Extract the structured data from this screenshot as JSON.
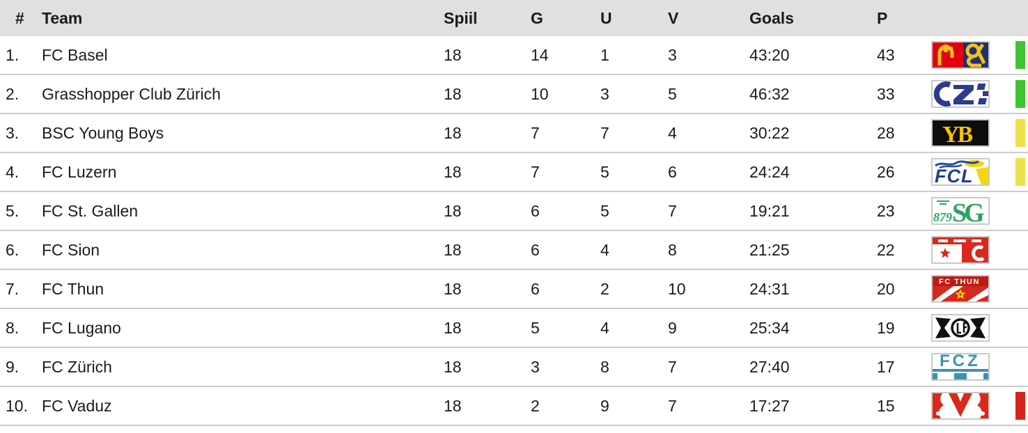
{
  "table": {
    "columns": [
      {
        "key": "rank",
        "label": "#"
      },
      {
        "key": "team",
        "label": "Team"
      },
      {
        "key": "spiil",
        "label": "Spiil"
      },
      {
        "key": "g",
        "label": "G"
      },
      {
        "key": "u",
        "label": "U"
      },
      {
        "key": "v",
        "label": "V"
      },
      {
        "key": "goals",
        "label": "Goals"
      },
      {
        "key": "p",
        "label": "P"
      }
    ],
    "rows": [
      {
        "rank": "1.",
        "team": "FC Basel",
        "spiil": "18",
        "g": "14",
        "u": "1",
        "v": "3",
        "goals": "43:20",
        "p": "43",
        "logo": "fc-basel-logo",
        "bar_color": "#3ec52f"
      },
      {
        "rank": "2.",
        "team": "Grasshopper Club Zürich",
        "spiil": "18",
        "g": "10",
        "u": "3",
        "v": "5",
        "goals": "46:32",
        "p": "33",
        "logo": "grasshopper-club-zuerich-logo",
        "bar_color": "#3ec52f"
      },
      {
        "rank": "3.",
        "team": "BSC Young Boys",
        "spiil": "18",
        "g": "7",
        "u": "7",
        "v": "4",
        "goals": "30:22",
        "p": "28",
        "logo": "bsc-young-boys-logo",
        "bar_color": "#efe14c"
      },
      {
        "rank": "4.",
        "team": "FC Luzern",
        "spiil": "18",
        "g": "7",
        "u": "5",
        "v": "6",
        "goals": "24:24",
        "p": "26",
        "logo": "fc-luzern-logo",
        "bar_color": "#efe14c"
      },
      {
        "rank": "5.",
        "team": "FC St. Gallen",
        "spiil": "18",
        "g": "6",
        "u": "5",
        "v": "7",
        "goals": "19:21",
        "p": "23",
        "logo": "fc-st-gallen-logo",
        "bar_color": null
      },
      {
        "rank": "6.",
        "team": "FC Sion",
        "spiil": "18",
        "g": "6",
        "u": "4",
        "v": "8",
        "goals": "21:25",
        "p": "22",
        "logo": "fc-sion-logo",
        "bar_color": null
      },
      {
        "rank": "7.",
        "team": "FC Thun",
        "spiil": "18",
        "g": "6",
        "u": "2",
        "v": "10",
        "goals": "24:31",
        "p": "20",
        "logo": "fc-thun-logo",
        "bar_color": null
      },
      {
        "rank": "8.",
        "team": "FC Lugano",
        "spiil": "18",
        "g": "5",
        "u": "4",
        "v": "9",
        "goals": "25:34",
        "p": "19",
        "logo": "fc-lugano-logo",
        "bar_color": null
      },
      {
        "rank": "9.",
        "team": "FC Zürich",
        "spiil": "18",
        "g": "3",
        "u": "8",
        "v": "7",
        "goals": "27:40",
        "p": "17",
        "logo": "fc-zuerich-logo",
        "bar_color": null
      },
      {
        "rank": "10.",
        "team": "FC Vaduz",
        "spiil": "18",
        "g": "2",
        "u": "9",
        "v": "7",
        "goals": "17:27",
        "p": "15",
        "logo": "fc-vaduz-logo",
        "bar_color": "#d6251b"
      }
    ]
  },
  "colors": {
    "header_background": "#e0e0e0",
    "row_separator": "#cccccc",
    "qualification_green": "#3ec52f",
    "qualification_yellow": "#efe14c",
    "qualification_red": "#d6251b"
  }
}
